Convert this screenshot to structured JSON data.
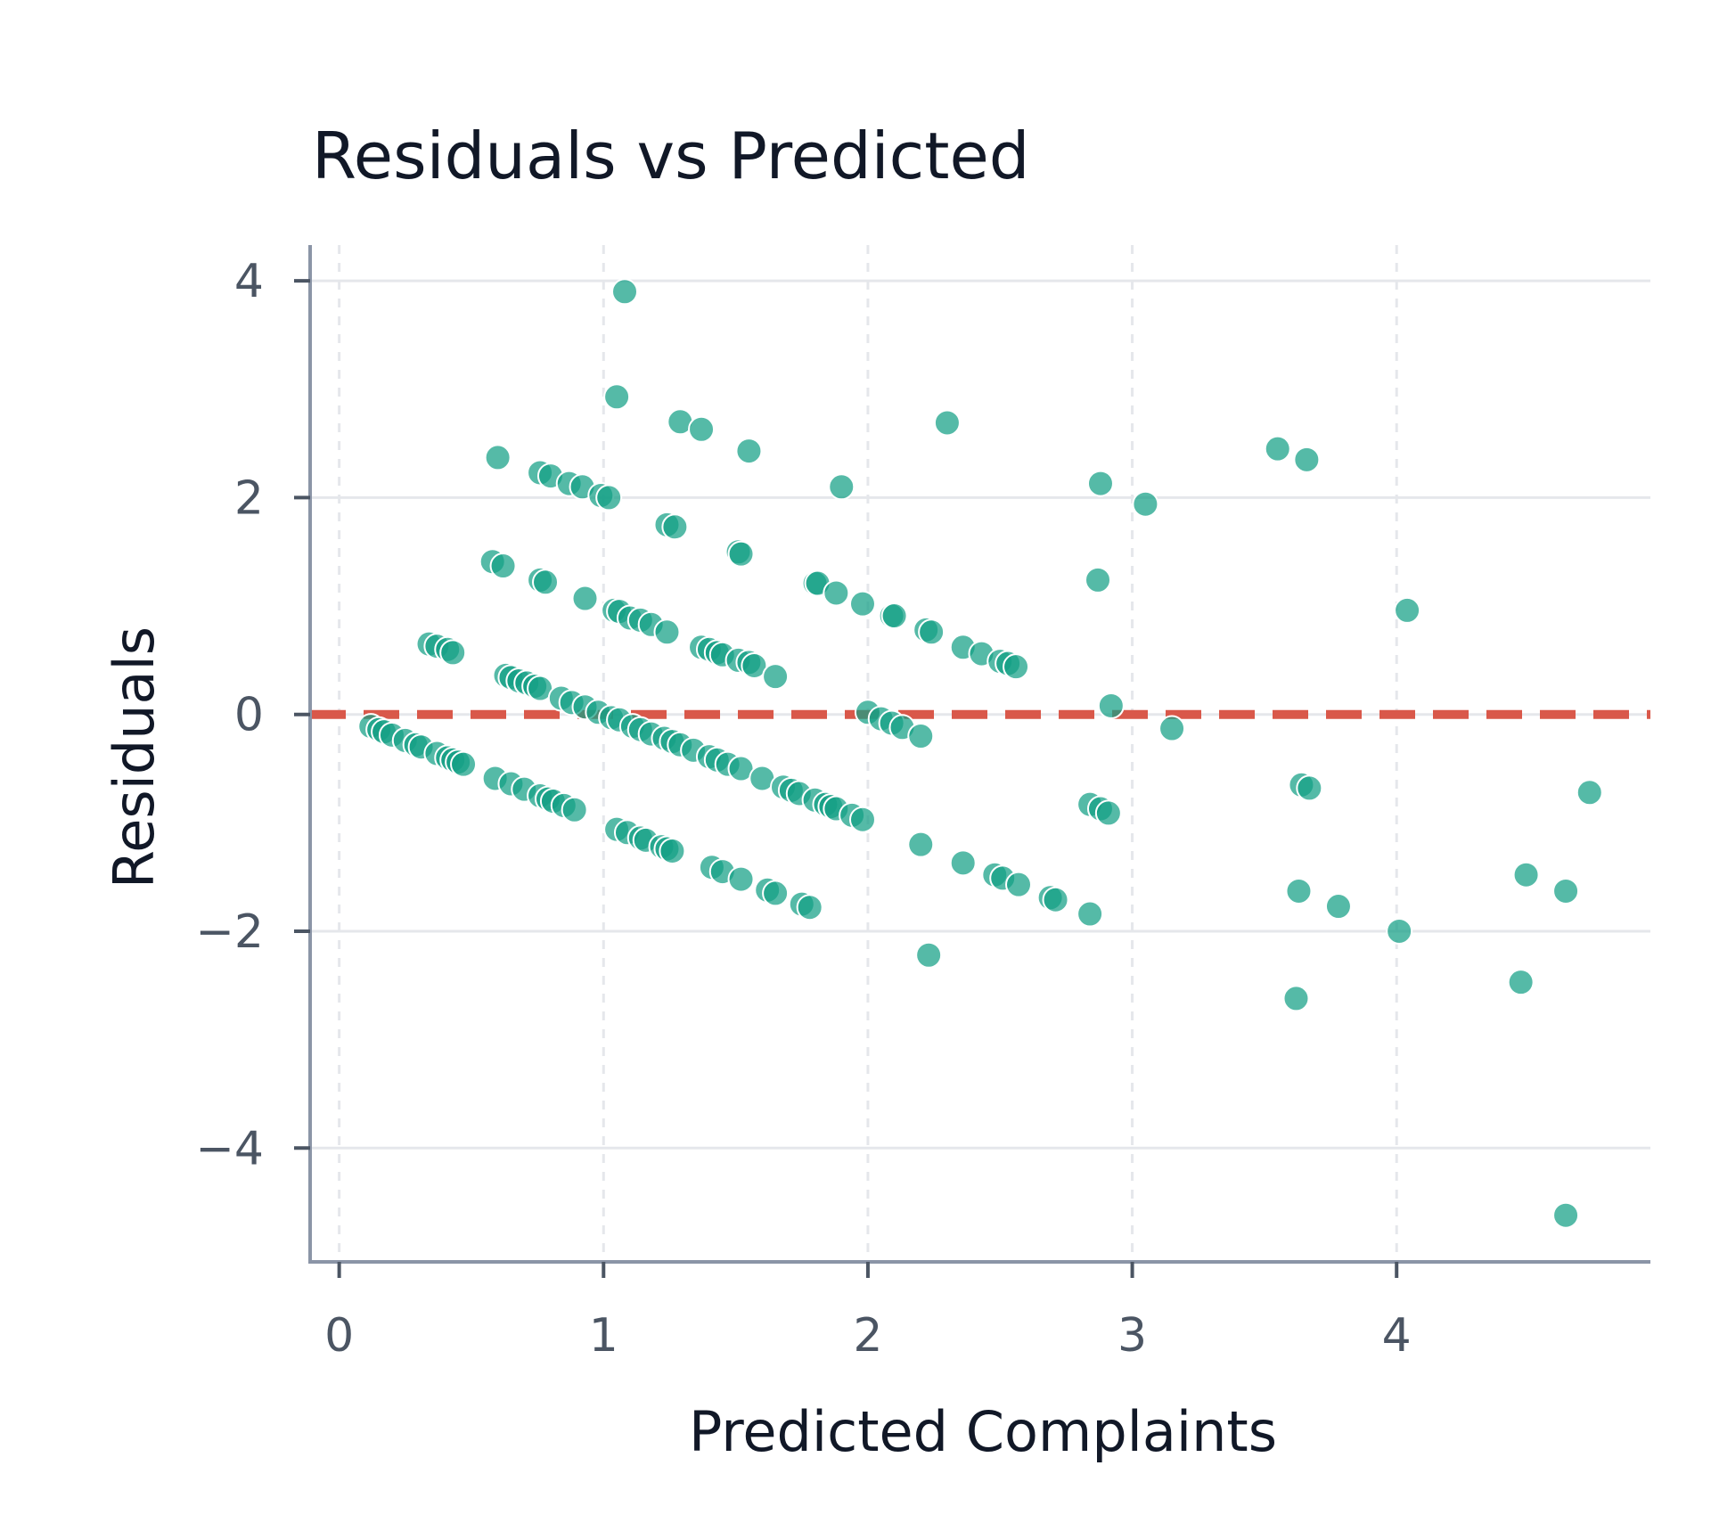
{
  "chart_data": {
    "type": "scatter",
    "title": "Residuals vs Predicted",
    "xlabel": "Predicted Complaints",
    "ylabel": "Residuals",
    "xlim": [
      -0.11,
      4.96
    ],
    "ylim": [
      -5.05,
      4.33
    ],
    "x_ticks": [
      0,
      1,
      2,
      3,
      4
    ],
    "y_ticks": [
      -4,
      -2,
      0,
      2,
      4
    ],
    "x_tick_labels": [
      "0",
      "1",
      "2",
      "3",
      "4"
    ],
    "y_tick_labels": [
      "−4",
      "−2",
      "0",
      "2",
      "4"
    ],
    "grid": true,
    "reference_line": {
      "y": 0,
      "style": "dashed"
    },
    "colors": {
      "points": "#14a085",
      "reference_line": "#d9584a",
      "grid": "#e5e7eb",
      "axis": "#8b95a7"
    },
    "series": [
      {
        "x": [
          1.08,
          1.05,
          1.29,
          1.37,
          1.55,
          0.6,
          0.76,
          0.8,
          0.87,
          0.92,
          0.99,
          1.02,
          1.9,
          2.3,
          1.24,
          1.27,
          1.51,
          1.52,
          0.58,
          0.62,
          0.76,
          0.78,
          0.93,
          1.04,
          1.06,
          1.1,
          1.14,
          1.18,
          1.24,
          1.37,
          1.4,
          1.43,
          1.45,
          1.51,
          1.55,
          1.57,
          1.65,
          1.8,
          1.81,
          1.88,
          1.98,
          2.09,
          2.1,
          2.22,
          2.24,
          2.36,
          2.43,
          2.5,
          2.53,
          2.56,
          0.34,
          0.37,
          0.41,
          0.43,
          0.63,
          0.65,
          0.68,
          0.71,
          0.74,
          0.76,
          0.84,
          0.88,
          0.93,
          0.98,
          1.03,
          1.06,
          1.11,
          1.14,
          1.18,
          1.23,
          1.26,
          1.29,
          1.34,
          1.4,
          1.43,
          1.47,
          1.52,
          1.6,
          1.68,
          1.71,
          1.74,
          1.8,
          1.84,
          1.86,
          1.88,
          1.94,
          1.98,
          2.0,
          2.05,
          2.09,
          2.13,
          2.2,
          0.12,
          0.15,
          0.17,
          0.2,
          0.25,
          0.29,
          0.31,
          0.37,
          0.41,
          0.43,
          0.45,
          0.47,
          0.59,
          0.65,
          0.7,
          0.76,
          0.79,
          0.81,
          0.85,
          0.89,
          1.05,
          1.09,
          1.14,
          1.16,
          1.22,
          1.24,
          1.26,
          1.41,
          1.45,
          1.52,
          1.62,
          1.65,
          1.75,
          1.78,
          2.2,
          2.23,
          2.36,
          2.48,
          2.51,
          2.57,
          2.69,
          2.71,
          2.84,
          2.84,
          2.88,
          2.91,
          2.88,
          2.92,
          2.87,
          3.05,
          3.15,
          3.55,
          3.66,
          3.64,
          3.67,
          3.63,
          3.62,
          3.78,
          4.01,
          4.04,
          4.47,
          4.49,
          4.64,
          4.64,
          4.73
        ],
        "y": [
          3.9,
          2.93,
          2.7,
          2.63,
          2.43,
          2.37,
          2.23,
          2.2,
          2.13,
          2.1,
          2.02,
          2.0,
          2.1,
          2.69,
          1.75,
          1.73,
          1.5,
          1.48,
          1.41,
          1.37,
          1.24,
          1.22,
          1.07,
          0.96,
          0.95,
          0.89,
          0.87,
          0.83,
          0.76,
          0.62,
          0.6,
          0.57,
          0.55,
          0.5,
          0.48,
          0.45,
          0.35,
          1.21,
          1.21,
          1.12,
          1.02,
          0.91,
          0.91,
          0.78,
          0.76,
          0.62,
          0.56,
          0.49,
          0.47,
          0.44,
          0.65,
          0.63,
          0.6,
          0.57,
          0.36,
          0.34,
          0.31,
          0.29,
          0.26,
          0.24,
          0.15,
          0.11,
          0.07,
          0.02,
          -0.03,
          -0.05,
          -0.11,
          -0.14,
          -0.18,
          -0.22,
          -0.25,
          -0.28,
          -0.33,
          -0.39,
          -0.42,
          -0.46,
          -0.5,
          -0.59,
          -0.67,
          -0.7,
          -0.73,
          -0.79,
          -0.83,
          -0.85,
          -0.87,
          -0.93,
          -0.97,
          0.02,
          -0.04,
          -0.08,
          -0.12,
          -0.2,
          -0.11,
          -0.14,
          -0.16,
          -0.19,
          -0.24,
          -0.28,
          -0.3,
          -0.36,
          -0.4,
          -0.42,
          -0.44,
          -0.46,
          -0.59,
          -0.64,
          -0.69,
          -0.75,
          -0.78,
          -0.8,
          -0.84,
          -0.88,
          -1.06,
          -1.09,
          -1.14,
          -1.16,
          -1.22,
          -1.24,
          -1.26,
          -1.41,
          -1.45,
          -1.52,
          -1.62,
          -1.65,
          -1.75,
          -1.78,
          -1.2,
          -2.22,
          -1.37,
          -1.48,
          -1.51,
          -1.57,
          -1.69,
          -1.71,
          -1.84,
          -0.83,
          -0.87,
          -0.91,
          2.13,
          0.08,
          1.24,
          1.94,
          -0.13,
          2.45,
          2.35,
          -0.65,
          -0.68,
          -1.63,
          -2.62,
          -1.77,
          -2.0,
          0.96,
          -2.47,
          -1.48,
          -1.63,
          -4.62,
          -0.72
        ]
      }
    ]
  }
}
